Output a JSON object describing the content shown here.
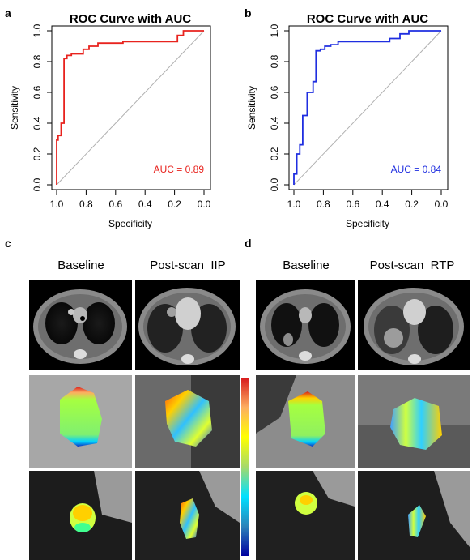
{
  "panels": {
    "a": "a",
    "b": "b",
    "c": "c",
    "d": "d"
  },
  "chart_data": [
    {
      "type": "line",
      "title": "ROC Curve with AUC",
      "xlabel": "Specificity",
      "ylabel": "Sensitivity",
      "x_reversed": true,
      "xlim": [
        1.0,
        0.0
      ],
      "ylim": [
        0.0,
        1.0
      ],
      "xticks": [
        "1.0",
        "0.8",
        "0.6",
        "0.4",
        "0.2",
        "0.0"
      ],
      "yticks": [
        "0.0",
        "0.2",
        "0.4",
        "0.6",
        "0.8",
        "1.0"
      ],
      "annotation": "AUC = 0.89",
      "color": "#e8231e",
      "diagonal_color": "#b0b0b0",
      "series": [
        {
          "x": [
            1.0,
            1.0,
            0.99,
            0.99,
            0.97,
            0.97,
            0.95,
            0.95,
            0.93,
            0.93,
            0.9,
            0.9,
            0.82,
            0.82,
            0.78,
            0.78,
            0.72,
            0.72,
            0.55,
            0.55,
            0.18,
            0.18,
            0.14,
            0.14,
            0.0
          ],
          "y": [
            0.0,
            0.29,
            0.29,
            0.32,
            0.32,
            0.4,
            0.4,
            0.82,
            0.82,
            0.84,
            0.84,
            0.85,
            0.85,
            0.88,
            0.88,
            0.9,
            0.9,
            0.92,
            0.92,
            0.93,
            0.93,
            0.97,
            0.97,
            1.0,
            1.0
          ]
        }
      ]
    },
    {
      "type": "line",
      "title": "ROC Curve with AUC",
      "xlabel": "Specificity",
      "ylabel": "Sensitivity",
      "x_reversed": true,
      "xlim": [
        1.0,
        0.0
      ],
      "ylim": [
        0.0,
        1.0
      ],
      "xticks": [
        "1.0",
        "0.8",
        "0.6",
        "0.4",
        "0.2",
        "0.0"
      ],
      "yticks": [
        "0.0",
        "0.2",
        "0.4",
        "0.6",
        "0.8",
        "1.0"
      ],
      "annotation": "AUC = 0.84",
      "color": "#1f2ee0",
      "diagonal_color": "#b0b0b0",
      "series": [
        {
          "x": [
            1.0,
            1.0,
            0.98,
            0.98,
            0.96,
            0.96,
            0.94,
            0.94,
            0.91,
            0.91,
            0.87,
            0.87,
            0.85,
            0.85,
            0.82,
            0.82,
            0.79,
            0.79,
            0.75,
            0.75,
            0.7,
            0.7,
            0.35,
            0.35,
            0.28,
            0.28,
            0.22,
            0.22,
            0.0
          ],
          "y": [
            0.0,
            0.07,
            0.07,
            0.2,
            0.2,
            0.26,
            0.26,
            0.45,
            0.45,
            0.6,
            0.6,
            0.67,
            0.67,
            0.87,
            0.87,
            0.88,
            0.88,
            0.9,
            0.9,
            0.91,
            0.91,
            0.93,
            0.93,
            0.95,
            0.95,
            0.98,
            0.98,
            1.0,
            1.0
          ]
        }
      ]
    }
  ],
  "image_panels": {
    "c": {
      "left_label": "Baseline",
      "right_label": "Post-scan_IIP"
    },
    "d": {
      "left_label": "Baseline",
      "right_label": "Post-scan_RTP"
    }
  },
  "colorbar": {
    "colors": [
      "#d7191c",
      "#fdae61",
      "#ffff00",
      "#a6d96a",
      "#00e0ff",
      "#2b83ba",
      "#0000a0"
    ]
  }
}
